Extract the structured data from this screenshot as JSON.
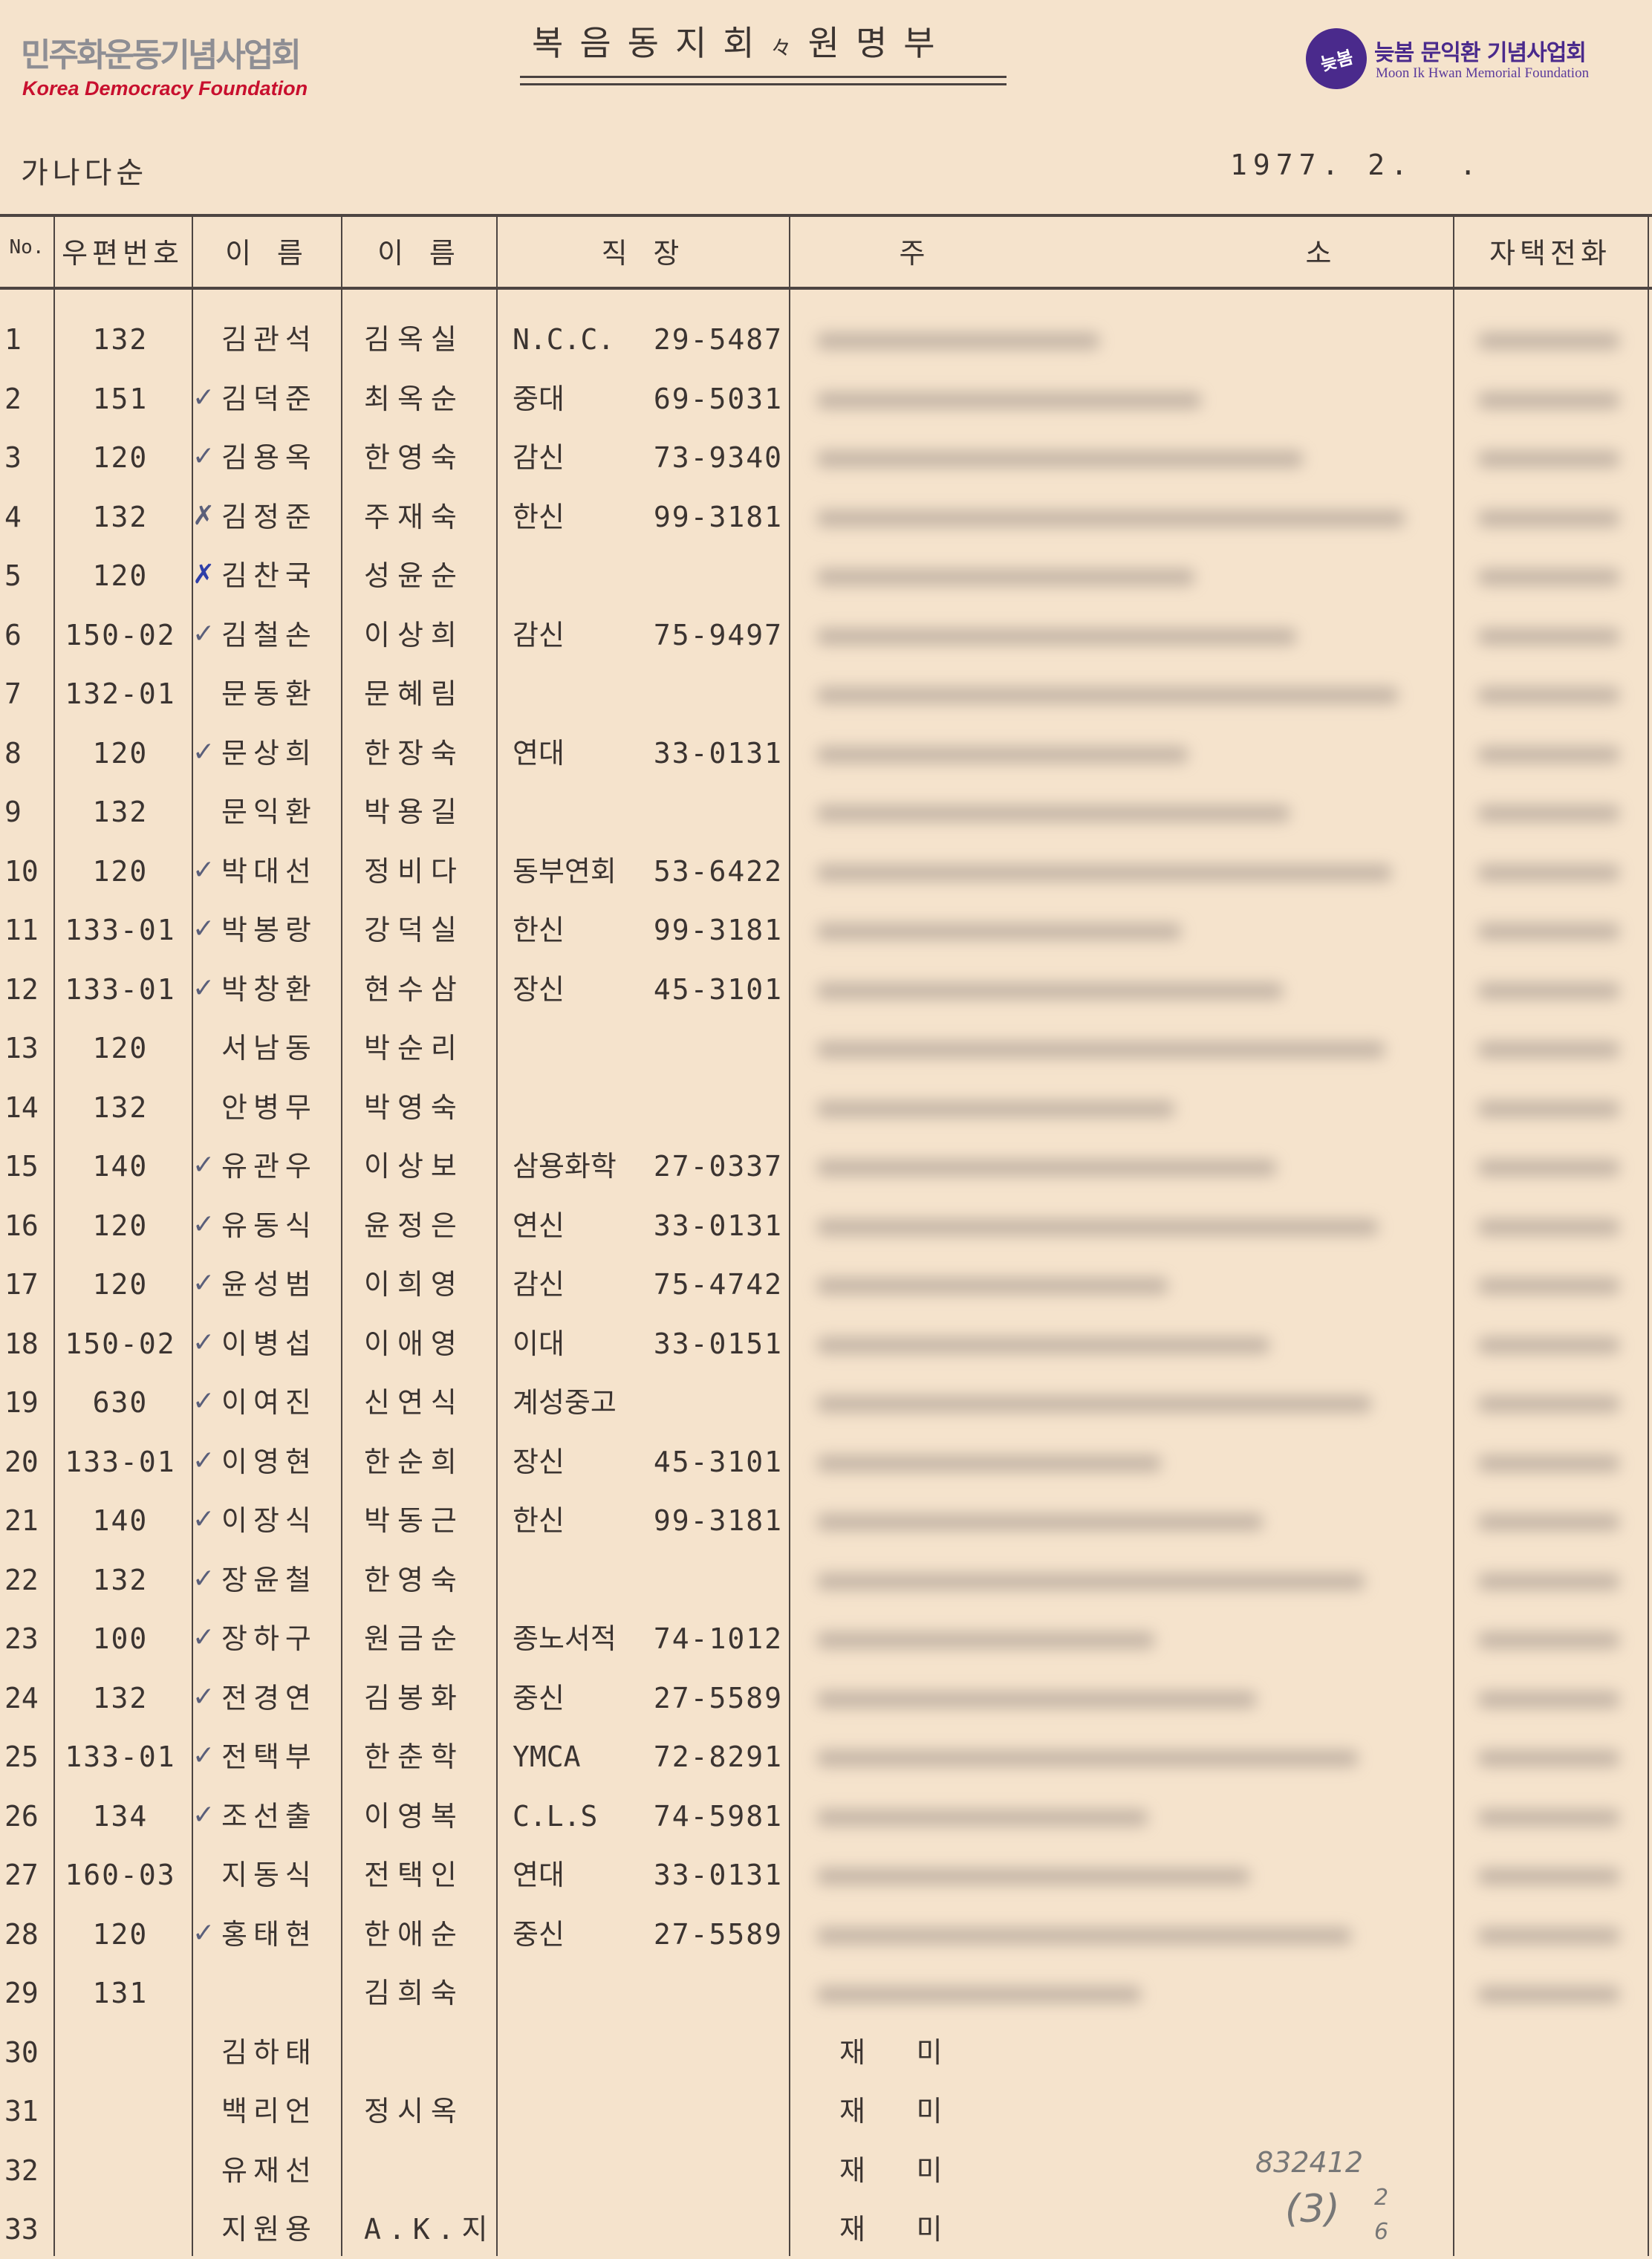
{
  "header": {
    "left_logo": {
      "korean": "민주화운동기념사업회",
      "english": "Korea Democracy Foundation"
    },
    "title": "복음동지회 원명부",
    "title_mark": "々",
    "right_logo": {
      "emblem": "늦봄",
      "korean": "늦봄 문익환 기념사업회",
      "english": "Moon Ik Hwan Memorial Foundation"
    },
    "order_note": "가나다순",
    "date": "1977. 2.  ."
  },
  "table": {
    "columns": [
      "No.",
      "우편번호",
      "이 름",
      "이 름",
      "직 장",
      "주",
      "소",
      "자택전화"
    ],
    "rows": [
      {
        "no": "1",
        "postal": "132",
        "name1": "김관석",
        "name2": "김옥실",
        "work": "N.C.C.",
        "phone_work": "29-5487",
        "mark": "",
        "redacted": true
      },
      {
        "no": "2",
        "postal": "151",
        "name1": "김덕준",
        "name2": "최옥순",
        "work": "중대",
        "phone_work": "69-5031",
        "mark": "check",
        "redacted": true
      },
      {
        "no": "3",
        "postal": "120",
        "name1": "김용옥",
        "name2": "한영숙",
        "work": "감신",
        "phone_work": "73-9340",
        "mark": "check",
        "redacted": true
      },
      {
        "no": "4",
        "postal": "132",
        "name1": "김정준",
        "name2": "주재숙",
        "work": "한신",
        "phone_work": "99-3181",
        "mark": "cross",
        "redacted": true
      },
      {
        "no": "5",
        "postal": "120",
        "name1": "김찬국",
        "name2": "성윤순",
        "work": "",
        "phone_work": "",
        "mark": "cross-blue",
        "redacted": true
      },
      {
        "no": "6",
        "postal": "150-02",
        "name1": "김철손",
        "name2": "이상희",
        "work": "감신",
        "phone_work": "75-9497",
        "mark": "check",
        "redacted": true
      },
      {
        "no": "7",
        "postal": "132-01",
        "name1": "문동환",
        "name2": "문혜림",
        "work": "",
        "phone_work": "",
        "mark": "",
        "redacted": true
      },
      {
        "no": "8",
        "postal": "120",
        "name1": "문상희",
        "name2": "한장숙",
        "work": "연대",
        "phone_work": "33-0131",
        "mark": "check",
        "redacted": true
      },
      {
        "no": "9",
        "postal": "132",
        "name1": "문익환",
        "name2": "박용길",
        "work": "",
        "phone_work": "",
        "mark": "",
        "redacted": true
      },
      {
        "no": "10",
        "postal": "120",
        "name1": "박대선",
        "name2": "정비다",
        "work": "동부연회",
        "phone_work": "53-6422",
        "mark": "check",
        "redacted": true
      },
      {
        "no": "11",
        "postal": "133-01",
        "name1": "박봉랑",
        "name2": "강덕실",
        "work": "한신",
        "phone_work": "99-3181",
        "mark": "check",
        "redacted": true
      },
      {
        "no": "12",
        "postal": "133-01",
        "name1": "박창환",
        "name2": "현수삼",
        "work": "장신",
        "phone_work": "45-3101",
        "mark": "check",
        "redacted": true
      },
      {
        "no": "13",
        "postal": "120",
        "name1": "서남동",
        "name2": "박순리",
        "work": "",
        "phone_work": "",
        "mark": "",
        "redacted": true
      },
      {
        "no": "14",
        "postal": "132",
        "name1": "안병무",
        "name2": "박영숙",
        "work": "",
        "phone_work": "",
        "mark": "",
        "redacted": true
      },
      {
        "no": "15",
        "postal": "140",
        "name1": "유관우",
        "name2": "이상보",
        "work": "삼용화학",
        "phone_work": "27-0337",
        "mark": "check",
        "redacted": true
      },
      {
        "no": "16",
        "postal": "120",
        "name1": "유동식",
        "name2": "윤정은",
        "work": "연신",
        "phone_work": "33-0131",
        "mark": "check",
        "redacted": true
      },
      {
        "no": "17",
        "postal": "120",
        "name1": "윤성범",
        "name2": "이희영",
        "work": "감신",
        "phone_work": "75-4742",
        "mark": "check",
        "redacted": true
      },
      {
        "no": "18",
        "postal": "150-02",
        "name1": "이병섭",
        "name2": "이애영",
        "work": "이대",
        "phone_work": "33-0151",
        "mark": "check",
        "redacted": true
      },
      {
        "no": "19",
        "postal": "630",
        "name1": "이여진",
        "name2": "신연식",
        "work": "계성중고",
        "phone_work": "",
        "mark": "check",
        "redacted": true
      },
      {
        "no": "20",
        "postal": "133-01",
        "name1": "이영현",
        "name2": "한순희",
        "work": "장신",
        "phone_work": "45-3101",
        "mark": "check",
        "redacted": true
      },
      {
        "no": "21",
        "postal": "140",
        "name1": "이장식",
        "name2": "박동근",
        "work": "한신",
        "phone_work": "99-3181",
        "mark": "check",
        "redacted": true
      },
      {
        "no": "22",
        "postal": "132",
        "name1": "장윤철",
        "name2": "한영숙",
        "work": "",
        "phone_work": "",
        "mark": "check",
        "redacted": true
      },
      {
        "no": "23",
        "postal": "100",
        "name1": "장하구",
        "name2": "원금순",
        "work": "종노서적",
        "phone_work": "74-1012",
        "mark": "check",
        "redacted": true
      },
      {
        "no": "24",
        "postal": "132",
        "name1": "전경연",
        "name2": "김봉화",
        "work": "중신",
        "phone_work": "27-5589",
        "mark": "check",
        "redacted": true
      },
      {
        "no": "25",
        "postal": "133-01",
        "name1": "전택부",
        "name2": "한춘학",
        "work": "YMCA",
        "phone_work": "72-8291",
        "mark": "check",
        "redacted": true
      },
      {
        "no": "26",
        "postal": "134",
        "name1": "조선출",
        "name2": "이영복",
        "work": "C.L.S",
        "phone_work": "74-5981",
        "mark": "check",
        "redacted": true
      },
      {
        "no": "27",
        "postal": "160-03",
        "name1": "지동식",
        "name2": "전택인",
        "work": "연대",
        "phone_work": "33-0131",
        "mark": "",
        "redacted": true
      },
      {
        "no": "28",
        "postal": "120",
        "name1": "홍태현",
        "name2": "한애순",
        "work": "중신",
        "phone_work": "27-5589",
        "mark": "check",
        "redacted": true
      },
      {
        "no": "29",
        "postal": "131",
        "name1": "",
        "name2": "김희숙",
        "work": "",
        "phone_work": "",
        "mark": "",
        "redacted": true
      },
      {
        "no": "30",
        "postal": "",
        "name1": "김하태",
        "name2": "",
        "work": "",
        "phone_work": "",
        "mark": "",
        "address": "재   미",
        "redacted": false
      },
      {
        "no": "31",
        "postal": "",
        "name1": "백리언",
        "name2": "정시옥",
        "work": "",
        "phone_work": "",
        "mark": "",
        "address": "재   미",
        "redacted": false
      },
      {
        "no": "32",
        "postal": "",
        "name1": "유재선",
        "name2": "",
        "work": "",
        "phone_work": "",
        "mark": "",
        "address": "재   미",
        "redacted": false
      },
      {
        "no": "33",
        "postal": "",
        "name1": "지원용",
        "name2": "A.K.지",
        "work": "",
        "phone_work": "",
        "mark": "",
        "address": "재   미",
        "redacted": false
      }
    ]
  },
  "annotation": {
    "line1": "832412",
    "line2": "(3)",
    "fraction_top": "2",
    "fraction_bottom": "6"
  },
  "colors": {
    "paper": "#f5e3cc",
    "ink": "#3b3431",
    "kdf_red": "#c8102e",
    "foundation_purple": "#4a2a8c"
  }
}
